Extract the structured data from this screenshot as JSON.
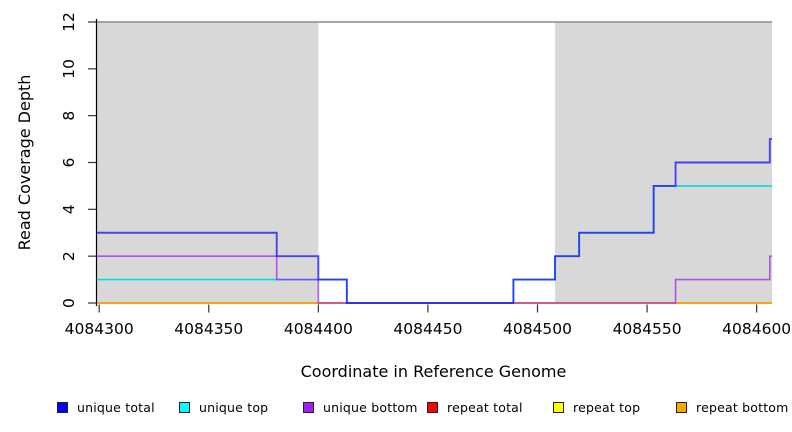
{
  "chart_data": {
    "type": "line",
    "subtype": "step-coverage",
    "title": "",
    "xlabel": "Coordinate in Reference Genome",
    "ylabel": "Read Coverage Depth",
    "xlim": [
      4084299,
      4084607
    ],
    "ylim": [
      0,
      12
    ],
    "x_ticks": [
      4084300,
      4084350,
      4084400,
      4084450,
      4084500,
      4084550,
      4084600
    ],
    "y_ticks": [
      0,
      2,
      4,
      6,
      8,
      10,
      12
    ],
    "grid": false,
    "legend_position": "bottom",
    "shade_color": "#d8d8d8",
    "top_border_color": "#8a8a8a",
    "shaded_regions": [
      {
        "x0": 4084299,
        "x1": 4084400
      },
      {
        "x0": 4084508,
        "x1": 4084607
      }
    ],
    "x_end": 4084607,
    "draw_order": [
      "repeat_total",
      "repeat_top",
      "repeat_bottom",
      "unique_top",
      "unique_bottom",
      "unique_total"
    ],
    "series": [
      {
        "id": "unique_total",
        "label": "unique total",
        "line_color": "#2020ee",
        "legend_color": "#0000ff",
        "opacity": 0.8,
        "width": 1.9,
        "steps": [
          [
            4084299,
            3
          ],
          [
            4084381,
            2
          ],
          [
            4084400,
            1
          ],
          [
            4084413,
            0
          ],
          [
            4084489,
            1
          ],
          [
            4084508,
            2
          ],
          [
            4084519,
            3
          ],
          [
            4084553,
            5
          ],
          [
            4084563,
            6
          ],
          [
            4084606,
            7
          ]
        ]
      },
      {
        "id": "unique_top",
        "label": "unique top",
        "line_color": "#00dce6",
        "legend_color": "#00ffff",
        "opacity": 1,
        "width": 1.6,
        "steps": [
          [
            4084299,
            1
          ],
          [
            4084413,
            0
          ],
          [
            4084489,
            1
          ],
          [
            4084508,
            2
          ],
          [
            4084519,
            3
          ],
          [
            4084553,
            5
          ]
        ]
      },
      {
        "id": "unique_bottom",
        "label": "unique bottom",
        "line_color": "#a020f0",
        "legend_color": "#a020f0",
        "opacity": 0.72,
        "width": 1.6,
        "steps": [
          [
            4084299,
            2
          ],
          [
            4084381,
            1
          ],
          [
            4084400,
            0
          ],
          [
            4084563,
            1
          ],
          [
            4084606,
            2
          ]
        ]
      },
      {
        "id": "repeat_total",
        "label": "repeat total",
        "line_color": "#ff0000",
        "legend_color": "#ff0000",
        "opacity": 1,
        "width": 1.6,
        "steps": [
          [
            4084299,
            0
          ]
        ]
      },
      {
        "id": "repeat_top",
        "label": "repeat top",
        "line_color": "#ffff00",
        "legend_color": "#ffff00",
        "opacity": 1,
        "width": 1.6,
        "steps": [
          [
            4084299,
            0
          ]
        ]
      },
      {
        "id": "repeat_bottom",
        "label": "repeat bottom",
        "line_color": "#ff9d12",
        "legend_color": "#ffa500",
        "opacity": 1,
        "width": 1.8,
        "steps": [
          [
            4084299,
            0
          ]
        ]
      }
    ]
  }
}
